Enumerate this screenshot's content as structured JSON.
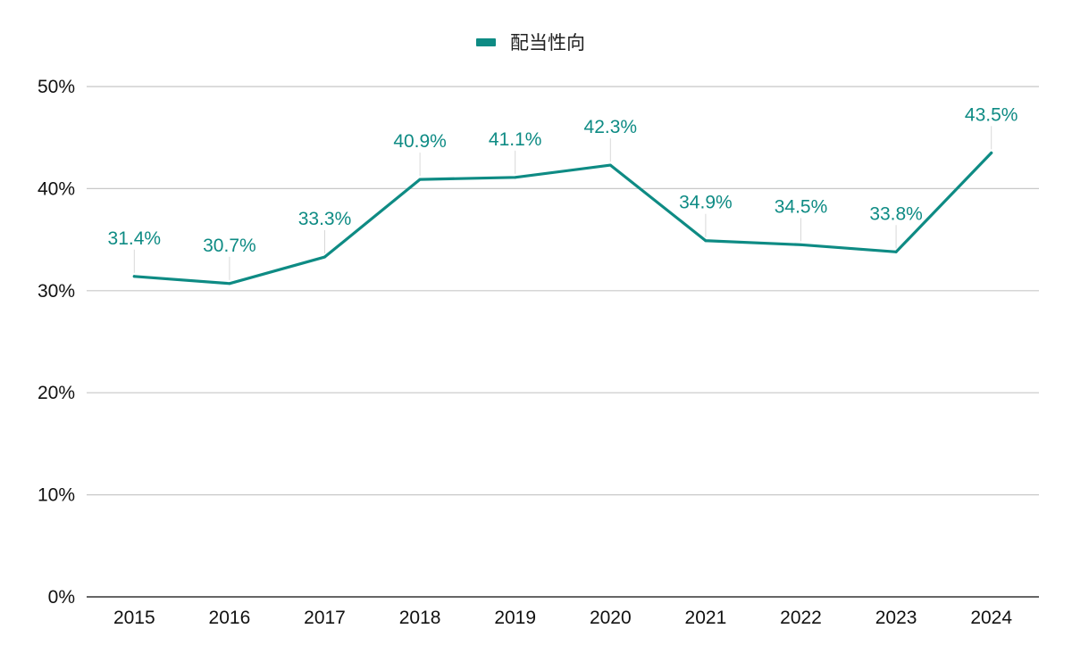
{
  "chart_data": {
    "type": "line",
    "title": "",
    "xlabel": "",
    "ylabel": "",
    "categories": [
      "2015",
      "2016",
      "2017",
      "2018",
      "2019",
      "2020",
      "2021",
      "2022",
      "2023",
      "2024"
    ],
    "series": [
      {
        "name": "配当性向",
        "values": [
          31.4,
          30.7,
          33.3,
          40.9,
          41.1,
          42.3,
          34.9,
          34.5,
          33.8,
          43.5
        ],
        "data_labels": [
          "31.4%",
          "30.7%",
          "33.3%",
          "40.9%",
          "41.1%",
          "42.3%",
          "34.9%",
          "34.5%",
          "33.8%",
          "43.5%"
        ]
      }
    ],
    "ylim": [
      0,
      50
    ],
    "y_ticks": [
      0,
      10,
      20,
      30,
      40,
      50
    ],
    "y_tick_labels": [
      "0%",
      "10%",
      "20%",
      "30%",
      "40%",
      "50%"
    ],
    "grid": true,
    "legend_position": "top-center"
  },
  "colors": {
    "series": "#0e8b84",
    "label": "#0e8b84",
    "grid": "#c8c8c8",
    "axis": "#333333"
  }
}
